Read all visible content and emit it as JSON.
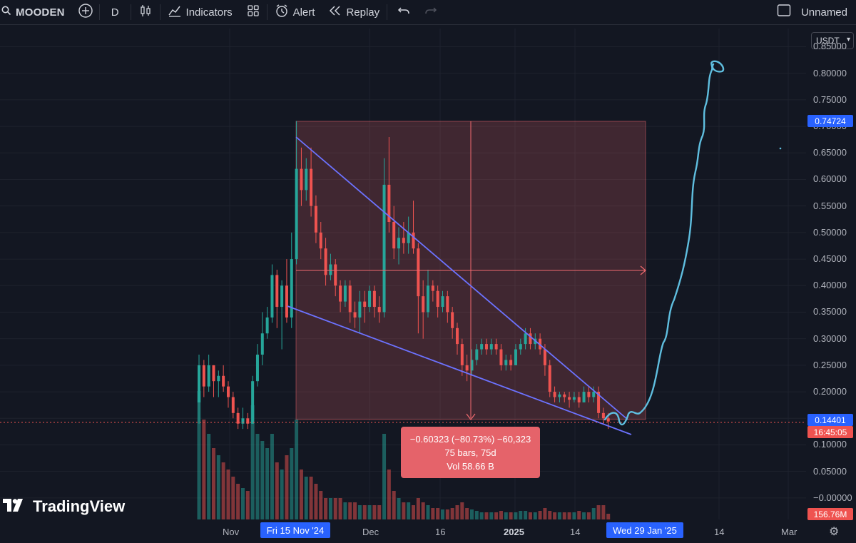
{
  "toolbar": {
    "symbol": "MOODEN",
    "interval": "D",
    "indicators": "Indicators",
    "alert": "Alert",
    "replay": "Replay",
    "layout_name": "Unnamed"
  },
  "currency_selector": "USDT",
  "brand": "TradingView",
  "price_axis": {
    "labels": [
      "0.85000",
      "0.80000",
      "0.75000",
      "0.70000",
      "0.65000",
      "0.60000",
      "0.55000",
      "0.50000",
      "0.45000",
      "0.40000",
      "0.35000",
      "0.30000",
      "0.25000",
      "0.20000",
      "0.15000",
      "0.10000",
      "0.05000",
      "−0.00000"
    ],
    "tag_high": "0.74724",
    "tag_last": "0.14401",
    "tag_countdown": "16:45:05",
    "tag_volume": "156.76M"
  },
  "time_axis": {
    "labels": [
      "Nov",
      "Dec",
      "16",
      "2025",
      "14",
      "14",
      "Mar"
    ],
    "tag_start": "Fri 15 Nov '24",
    "tag_end": "Wed 29 Jan '25"
  },
  "measure": {
    "line1": "−0.60323 (−80.73%) −60,323",
    "line2": "75 bars, 75d",
    "line3": "Vol 58.66 B"
  },
  "colors": {
    "up": "#26a69a",
    "down": "#ef5350",
    "measure_box": "#e5636a",
    "trendline": "#6c72ff",
    "projection": "#5fbedf",
    "axis_tag": "#2962ff"
  },
  "chart_data": {
    "type": "candlestick",
    "y_unit": "USDT",
    "ylim": [
      -0.01,
      0.9
    ],
    "candles": [
      {
        "o": 0.18,
        "c": 0.25,
        "h": 0.27,
        "l": 0.14
      },
      {
        "o": 0.25,
        "c": 0.21,
        "h": 0.26,
        "l": 0.19
      },
      {
        "o": 0.21,
        "c": 0.25,
        "h": 0.27,
        "l": 0.2
      },
      {
        "o": 0.25,
        "c": 0.22,
        "h": 0.25,
        "l": 0.19
      },
      {
        "o": 0.22,
        "c": 0.23,
        "h": 0.24,
        "l": 0.19
      },
      {
        "o": 0.23,
        "c": 0.21,
        "h": 0.25,
        "l": 0.2
      },
      {
        "o": 0.21,
        "c": 0.19,
        "h": 0.22,
        "l": 0.17
      },
      {
        "o": 0.19,
        "c": 0.16,
        "h": 0.2,
        "l": 0.15
      },
      {
        "o": 0.16,
        "c": 0.14,
        "h": 0.17,
        "l": 0.13
      },
      {
        "o": 0.14,
        "c": 0.15,
        "h": 0.17,
        "l": 0.13
      },
      {
        "o": 0.15,
        "c": 0.14,
        "h": 0.16,
        "l": 0.13
      },
      {
        "o": 0.14,
        "c": 0.22,
        "h": 0.23,
        "l": 0.14
      },
      {
        "o": 0.22,
        "c": 0.27,
        "h": 0.29,
        "l": 0.21
      },
      {
        "o": 0.27,
        "c": 0.31,
        "h": 0.35,
        "l": 0.25
      },
      {
        "o": 0.31,
        "c": 0.34,
        "h": 0.36,
        "l": 0.3
      },
      {
        "o": 0.34,
        "c": 0.42,
        "h": 0.44,
        "l": 0.33
      },
      {
        "o": 0.42,
        "c": 0.36,
        "h": 0.43,
        "l": 0.32
      },
      {
        "o": 0.36,
        "c": 0.4,
        "h": 0.41,
        "l": 0.28
      },
      {
        "o": 0.4,
        "c": 0.34,
        "h": 0.45,
        "l": 0.33
      },
      {
        "o": 0.34,
        "c": 0.45,
        "h": 0.5,
        "l": 0.32
      },
      {
        "o": 0.45,
        "c": 0.62,
        "h": 0.71,
        "l": 0.44
      },
      {
        "o": 0.62,
        "c": 0.58,
        "h": 0.66,
        "l": 0.55
      },
      {
        "o": 0.58,
        "c": 0.62,
        "h": 0.64,
        "l": 0.56
      },
      {
        "o": 0.62,
        "c": 0.55,
        "h": 0.66,
        "l": 0.53
      },
      {
        "o": 0.55,
        "c": 0.5,
        "h": 0.57,
        "l": 0.48
      },
      {
        "o": 0.5,
        "c": 0.47,
        "h": 0.52,
        "l": 0.45
      },
      {
        "o": 0.47,
        "c": 0.42,
        "h": 0.49,
        "l": 0.4
      },
      {
        "o": 0.42,
        "c": 0.44,
        "h": 0.46,
        "l": 0.41
      },
      {
        "o": 0.44,
        "c": 0.4,
        "h": 0.45,
        "l": 0.38
      },
      {
        "o": 0.4,
        "c": 0.37,
        "h": 0.41,
        "l": 0.35
      },
      {
        "o": 0.37,
        "c": 0.4,
        "h": 0.41,
        "l": 0.36
      },
      {
        "o": 0.4,
        "c": 0.35,
        "h": 0.41,
        "l": 0.33
      },
      {
        "o": 0.35,
        "c": 0.34,
        "h": 0.37,
        "l": 0.32
      },
      {
        "o": 0.34,
        "c": 0.37,
        "h": 0.39,
        "l": 0.31
      },
      {
        "o": 0.37,
        "c": 0.36,
        "h": 0.39,
        "l": 0.33
      },
      {
        "o": 0.36,
        "c": 0.39,
        "h": 0.4,
        "l": 0.35
      },
      {
        "o": 0.39,
        "c": 0.36,
        "h": 0.4,
        "l": 0.34
      },
      {
        "o": 0.36,
        "c": 0.35,
        "h": 0.38,
        "l": 0.33
      },
      {
        "o": 0.35,
        "c": 0.59,
        "h": 0.64,
        "l": 0.34
      },
      {
        "o": 0.59,
        "c": 0.52,
        "h": 0.68,
        "l": 0.5
      },
      {
        "o": 0.52,
        "c": 0.47,
        "h": 0.55,
        "l": 0.45
      },
      {
        "o": 0.47,
        "c": 0.49,
        "h": 0.51,
        "l": 0.44
      },
      {
        "o": 0.49,
        "c": 0.48,
        "h": 0.52,
        "l": 0.46
      },
      {
        "o": 0.48,
        "c": 0.5,
        "h": 0.53,
        "l": 0.46
      },
      {
        "o": 0.5,
        "c": 0.47,
        "h": 0.56,
        "l": 0.46
      },
      {
        "o": 0.47,
        "c": 0.38,
        "h": 0.48,
        "l": 0.31
      },
      {
        "o": 0.38,
        "c": 0.35,
        "h": 0.41,
        "l": 0.3
      },
      {
        "o": 0.35,
        "c": 0.4,
        "h": 0.43,
        "l": 0.34
      },
      {
        "o": 0.4,
        "c": 0.39,
        "h": 0.41,
        "l": 0.37
      },
      {
        "o": 0.39,
        "c": 0.36,
        "h": 0.4,
        "l": 0.34
      },
      {
        "o": 0.36,
        "c": 0.38,
        "h": 0.39,
        "l": 0.35
      },
      {
        "o": 0.38,
        "c": 0.35,
        "h": 0.39,
        "l": 0.33
      },
      {
        "o": 0.35,
        "c": 0.32,
        "h": 0.36,
        "l": 0.3
      },
      {
        "o": 0.32,
        "c": 0.29,
        "h": 0.33,
        "l": 0.27
      },
      {
        "o": 0.29,
        "c": 0.25,
        "h": 0.3,
        "l": 0.23
      },
      {
        "o": 0.25,
        "c": 0.24,
        "h": 0.27,
        "l": 0.22
      },
      {
        "o": 0.24,
        "c": 0.26,
        "h": 0.28,
        "l": 0.23
      },
      {
        "o": 0.26,
        "c": 0.28,
        "h": 0.29,
        "l": 0.25
      },
      {
        "o": 0.28,
        "c": 0.29,
        "h": 0.3,
        "l": 0.27
      },
      {
        "o": 0.29,
        "c": 0.28,
        "h": 0.3,
        "l": 0.27
      },
      {
        "o": 0.28,
        "c": 0.29,
        "h": 0.3,
        "l": 0.27
      },
      {
        "o": 0.29,
        "c": 0.28,
        "h": 0.3,
        "l": 0.27
      },
      {
        "o": 0.28,
        "c": 0.25,
        "h": 0.29,
        "l": 0.24
      },
      {
        "o": 0.25,
        "c": 0.26,
        "h": 0.27,
        "l": 0.24
      },
      {
        "o": 0.26,
        "c": 0.25,
        "h": 0.27,
        "l": 0.24
      },
      {
        "o": 0.25,
        "c": 0.28,
        "h": 0.29,
        "l": 0.25
      },
      {
        "o": 0.28,
        "c": 0.29,
        "h": 0.3,
        "l": 0.27
      },
      {
        "o": 0.29,
        "c": 0.31,
        "h": 0.32,
        "l": 0.28
      },
      {
        "o": 0.31,
        "c": 0.29,
        "h": 0.32,
        "l": 0.28
      },
      {
        "o": 0.29,
        "c": 0.3,
        "h": 0.31,
        "l": 0.28
      },
      {
        "o": 0.3,
        "c": 0.28,
        "h": 0.31,
        "l": 0.27
      },
      {
        "o": 0.28,
        "c": 0.25,
        "h": 0.29,
        "l": 0.23
      },
      {
        "o": 0.25,
        "c": 0.2,
        "h": 0.26,
        "l": 0.19
      },
      {
        "o": 0.2,
        "c": 0.19,
        "h": 0.21,
        "l": 0.18
      },
      {
        "o": 0.19,
        "c": 0.195,
        "h": 0.2,
        "l": 0.18
      },
      {
        "o": 0.195,
        "c": 0.19,
        "h": 0.2,
        "l": 0.18
      },
      {
        "o": 0.19,
        "c": 0.185,
        "h": 0.2,
        "l": 0.17
      },
      {
        "o": 0.185,
        "c": 0.19,
        "h": 0.2,
        "l": 0.18
      },
      {
        "o": 0.19,
        "c": 0.18,
        "h": 0.2,
        "l": 0.17
      },
      {
        "o": 0.18,
        "c": 0.2,
        "h": 0.21,
        "l": 0.18
      },
      {
        "o": 0.2,
        "c": 0.19,
        "h": 0.21,
        "l": 0.18
      },
      {
        "o": 0.19,
        "c": 0.2,
        "h": 0.21,
        "l": 0.18
      },
      {
        "o": 0.2,
        "c": 0.16,
        "h": 0.21,
        "l": 0.15
      },
      {
        "o": 0.16,
        "c": 0.15,
        "h": 0.17,
        "l": 0.14
      },
      {
        "o": 0.15,
        "c": 0.144,
        "h": 0.16,
        "l": 0.13
      }
    ],
    "volumes": [
      0.9,
      0.7,
      0.6,
      0.5,
      0.45,
      0.4,
      0.35,
      0.3,
      0.25,
      0.22,
      0.2,
      0.8,
      0.6,
      0.55,
      0.5,
      0.6,
      0.4,
      0.35,
      0.45,
      0.5,
      0.7,
      0.35,
      0.3,
      0.3,
      0.25,
      0.2,
      0.15,
      0.15,
      0.15,
      0.15,
      0.12,
      0.12,
      0.12,
      0.1,
      0.1,
      0.1,
      0.1,
      0.1,
      0.6,
      0.35,
      0.2,
      0.15,
      0.12,
      0.12,
      0.1,
      0.15,
      0.12,
      0.1,
      0.08,
      0.08,
      0.07,
      0.07,
      0.08,
      0.1,
      0.12,
      0.08,
      0.07,
      0.06,
      0.05,
      0.05,
      0.05,
      0.05,
      0.06,
      0.05,
      0.05,
      0.05,
      0.06,
      0.06,
      0.05,
      0.05,
      0.06,
      0.08,
      0.06,
      0.05,
      0.05,
      0.05,
      0.05,
      0.05,
      0.06,
      0.05,
      0.05,
      0.08,
      0.1,
      0.1,
      0.04
    ]
  }
}
